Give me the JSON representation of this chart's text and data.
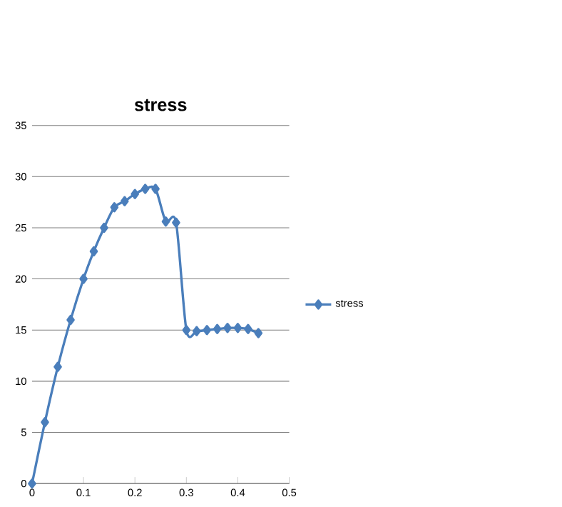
{
  "chart_data": {
    "type": "line",
    "title": "stress",
    "x": [
      0,
      0.025,
      0.05,
      0.075,
      0.1,
      0.12,
      0.14,
      0.16,
      0.18,
      0.2,
      0.22,
      0.24,
      0.26,
      0.28,
      0.3,
      0.32,
      0.34,
      0.36,
      0.38,
      0.4,
      0.42,
      0.44
    ],
    "series": [
      {
        "name": "stress",
        "color": "#4a7ebb",
        "values": [
          0,
          6,
          11.4,
          16,
          20,
          22.7,
          25,
          27,
          27.6,
          28.3,
          28.8,
          28.8,
          25.6,
          25.5,
          15,
          14.9,
          15,
          15.1,
          15.2,
          15.2,
          15.1,
          14.7
        ]
      }
    ],
    "xlim": [
      0,
      0.5
    ],
    "xticks": [
      0,
      0.1,
      0.2,
      0.3,
      0.4,
      0.5
    ],
    "ylim": [
      0,
      35
    ],
    "yticks": [
      0,
      5,
      10,
      15,
      20,
      25,
      30,
      35
    ],
    "grid": "y",
    "legend": "right",
    "marker": "diamond",
    "line_style": "solid"
  }
}
